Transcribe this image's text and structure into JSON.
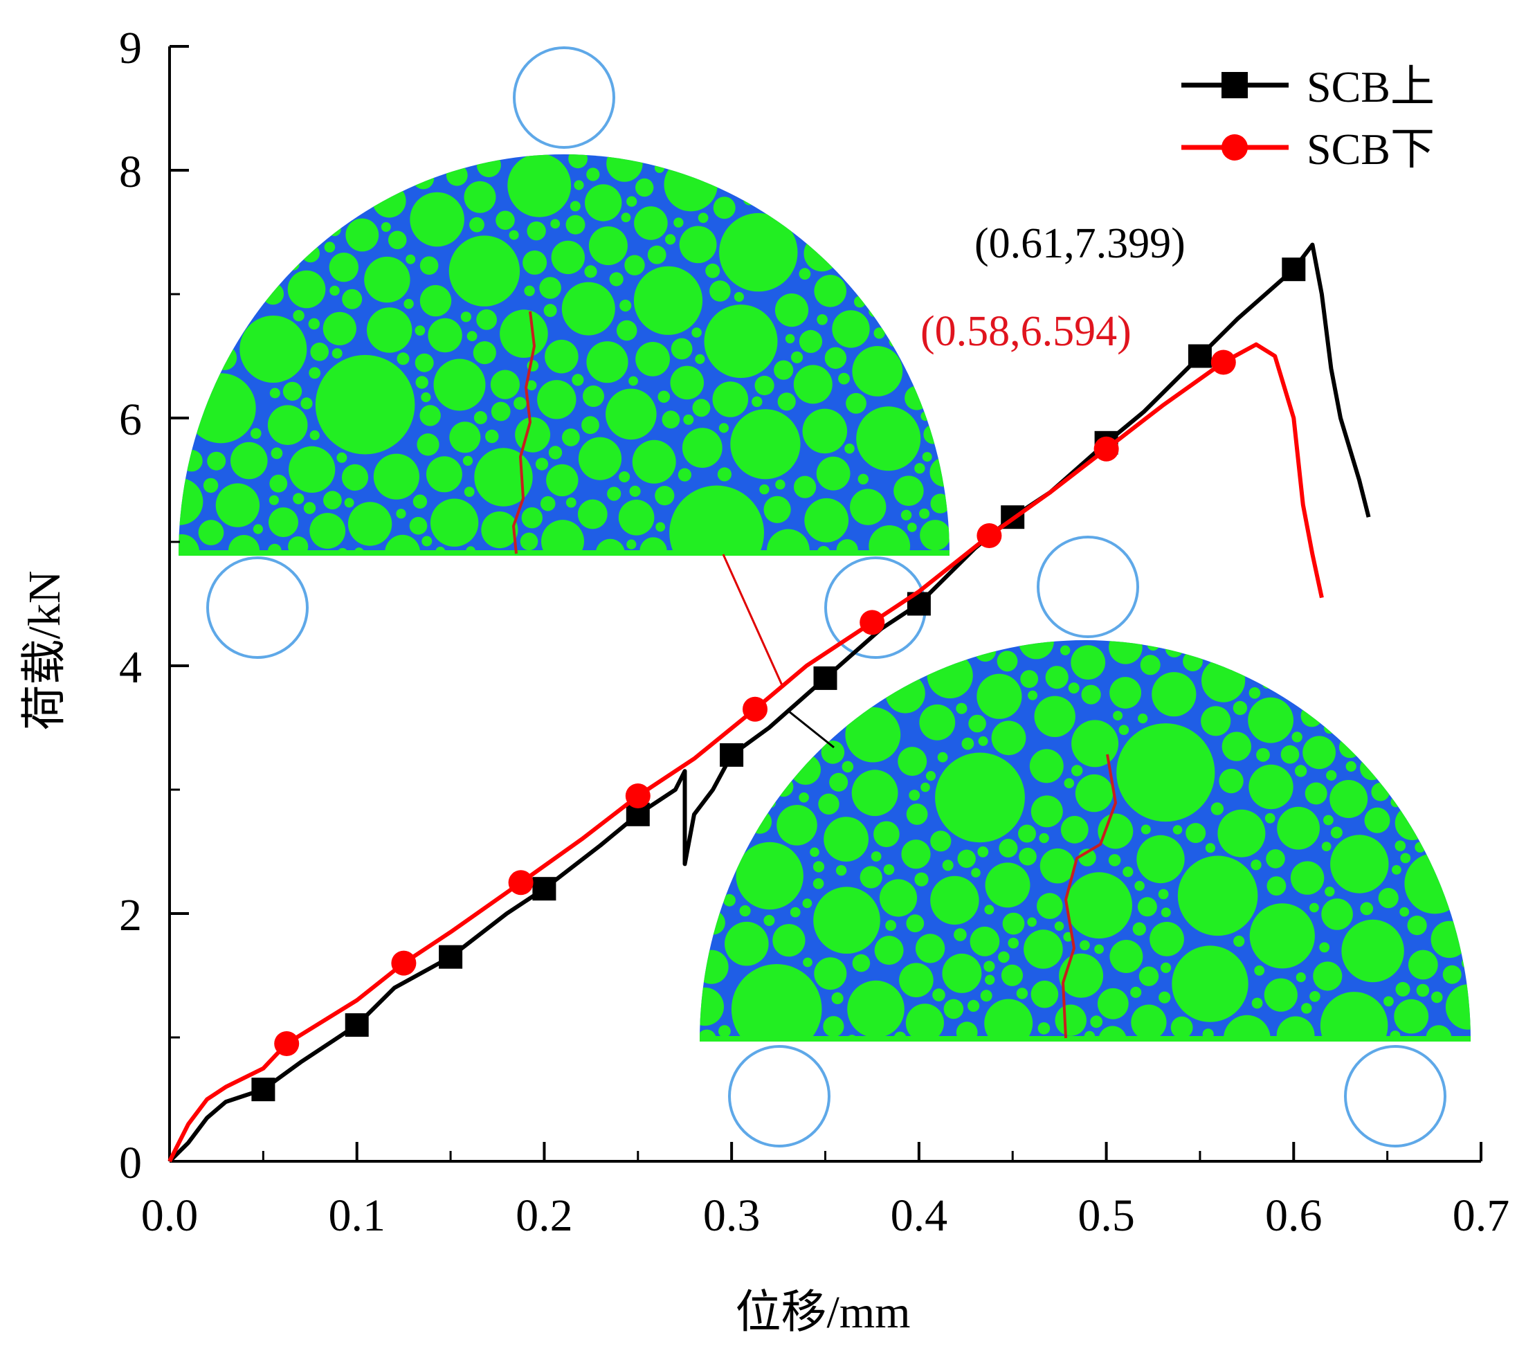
{
  "chart_data": {
    "type": "line",
    "xlabel": "位移/mm",
    "ylabel": "荷载/kN",
    "xlim": [
      0.0,
      0.7
    ],
    "ylim": [
      0,
      9
    ],
    "xticks": [
      "0.0",
      "0.1",
      "0.2",
      "0.3",
      "0.4",
      "0.5",
      "0.6",
      "0.7"
    ],
    "yticks": [
      "0",
      "2",
      "4",
      "6",
      "8"
    ],
    "ytick_top": "9",
    "grid": false,
    "legend_position": "top-right",
    "series": [
      {
        "name": "SCB上",
        "color": "#000000",
        "marker": "square",
        "x": [
          0.0,
          0.01,
          0.02,
          0.03,
          0.04,
          0.05,
          0.07,
          0.09,
          0.1,
          0.12,
          0.15,
          0.18,
          0.2,
          0.23,
          0.25,
          0.27,
          0.275,
          0.275,
          0.28,
          0.29,
          0.3,
          0.32,
          0.35,
          0.38,
          0.4,
          0.43,
          0.45,
          0.47,
          0.5,
          0.52,
          0.55,
          0.57,
          0.6,
          0.61,
          0.615,
          0.62,
          0.625,
          0.63,
          0.635,
          0.64
        ],
        "y": [
          0.0,
          0.15,
          0.35,
          0.48,
          0.53,
          0.58,
          0.8,
          1.0,
          1.1,
          1.4,
          1.65,
          2.0,
          2.2,
          2.55,
          2.8,
          3.0,
          3.15,
          2.4,
          2.8,
          3.0,
          3.28,
          3.5,
          3.9,
          4.3,
          4.5,
          4.95,
          5.2,
          5.4,
          5.8,
          6.05,
          6.5,
          6.8,
          7.2,
          7.399,
          7.0,
          6.4,
          6.0,
          5.75,
          5.5,
          5.2
        ],
        "marker_x": [
          0.05,
          0.1,
          0.15,
          0.2,
          0.25,
          0.3,
          0.35,
          0.4,
          0.45,
          0.5,
          0.55,
          0.6
        ],
        "marker_y": [
          0.58,
          1.1,
          1.65,
          2.2,
          2.8,
          3.28,
          3.9,
          4.5,
          5.2,
          5.8,
          6.5,
          7.2
        ]
      },
      {
        "name": "SCB下",
        "color": "#ff0000",
        "marker": "circle",
        "x": [
          0.0,
          0.01,
          0.02,
          0.03,
          0.05,
          0.0625,
          0.1,
          0.125,
          0.15,
          0.1875,
          0.22,
          0.25,
          0.28,
          0.3125,
          0.34,
          0.375,
          0.4,
          0.4375,
          0.47,
          0.5,
          0.53,
          0.5625,
          0.58,
          0.59,
          0.6,
          0.605,
          0.61,
          0.615
        ],
        "y": [
          0.0,
          0.3,
          0.5,
          0.6,
          0.75,
          0.95,
          1.3,
          1.6,
          1.85,
          2.25,
          2.6,
          2.95,
          3.25,
          3.65,
          4.0,
          4.35,
          4.6,
          5.05,
          5.4,
          5.75,
          6.1,
          6.45,
          6.594,
          6.5,
          6.0,
          5.3,
          4.9,
          4.55
        ],
        "marker_x": [
          0.0625,
          0.125,
          0.1875,
          0.25,
          0.3125,
          0.375,
          0.4375,
          0.5,
          0.5625
        ],
        "marker_y": [
          0.95,
          1.6,
          2.25,
          2.95,
          3.65,
          4.35,
          5.05,
          5.75,
          6.45
        ]
      }
    ],
    "annotations": [
      {
        "text": "(0.61,7.399)",
        "color": "#000000",
        "x": 0.61,
        "y": 7.399
      },
      {
        "text": "(0.58,6.594)",
        "color": "#e0141e",
        "x": 0.58,
        "y": 6.594
      }
    ]
  },
  "inset_colors": {
    "matrix": "#1f5ee6",
    "aggregate": "#22ee22",
    "support": "#5ea8e8",
    "crack": "#c81e1e"
  }
}
